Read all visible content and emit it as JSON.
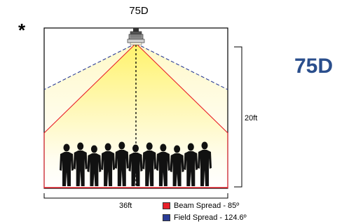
{
  "header": {
    "model_label": "75D",
    "marker": "*"
  },
  "side_title": "75D",
  "dimensions": {
    "height_label": "20ft",
    "width_label": "36ft"
  },
  "legend": {
    "beam": {
      "label": "Beam Spread - 85º",
      "color": "#e8202a"
    },
    "field": {
      "label": "Field Spread - 124.6º",
      "color": "#2b3d97"
    }
  },
  "colors": {
    "accent_title": "#2a4e8c",
    "light_glow": "#fff200"
  },
  "people_count": 11
}
